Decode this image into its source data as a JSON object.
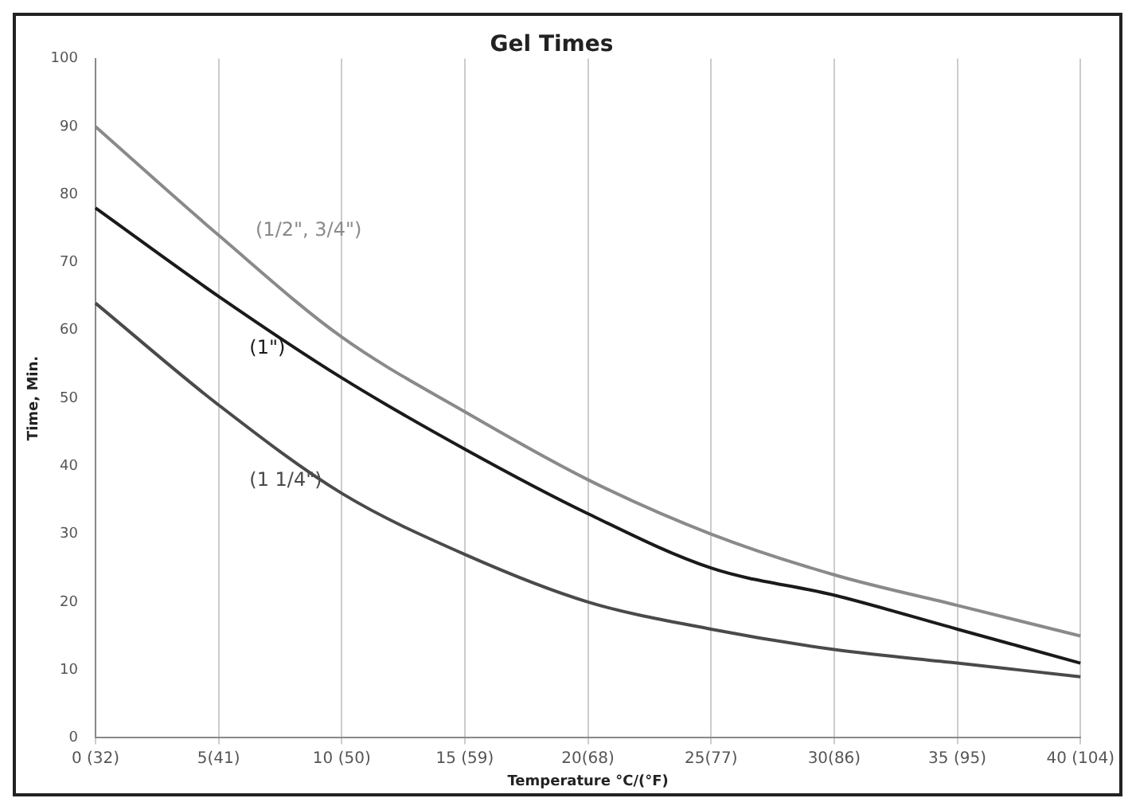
{
  "chart_data": {
    "type": "line",
    "title": "Gel Times",
    "xlabel": "Temperature °C/(°F)",
    "ylabel": "Time, Min.",
    "categories": [
      "0 (32)",
      "5(41)",
      "10 (50)",
      "15 (59)",
      "20(68)",
      "25(77)",
      "30(86)",
      "35 (95)",
      "40 (104)"
    ],
    "series": [
      {
        "name": "(1/2\", 3/4\")",
        "color": "#8a8a8a",
        "values": [
          90,
          74,
          59,
          48,
          38,
          30,
          24,
          19.5,
          15
        ]
      },
      {
        "name": "(1\")",
        "color": "#1a1a1a",
        "values": [
          78,
          65,
          53,
          42.5,
          33,
          25,
          21,
          16,
          11
        ]
      },
      {
        "name": "(1 1/4\")",
        "color": "#4a4a4a",
        "values": [
          64,
          49,
          36,
          27,
          20,
          16,
          13,
          11,
          9
        ]
      }
    ],
    "ylim": [
      0,
      100
    ],
    "yticks": [
      0,
      10,
      20,
      30,
      40,
      50,
      60,
      70,
      80,
      90,
      100
    ],
    "grid": "x",
    "legend": false,
    "marker": "none",
    "line_style": "solid"
  }
}
